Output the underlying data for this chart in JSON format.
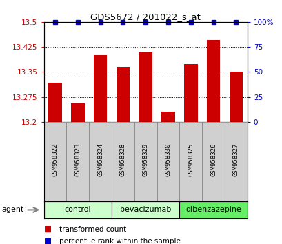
{
  "title": "GDS5672 / 201022_s_at",
  "samples": [
    "GSM958322",
    "GSM958323",
    "GSM958324",
    "GSM958328",
    "GSM958329",
    "GSM958330",
    "GSM958325",
    "GSM958326",
    "GSM958327"
  ],
  "bar_values": [
    13.318,
    13.255,
    13.4,
    13.365,
    13.408,
    13.232,
    13.373,
    13.445,
    13.35
  ],
  "percentile_values": [
    100,
    100,
    100,
    100,
    100,
    100,
    100,
    100,
    100
  ],
  "bar_color": "#cc0000",
  "dot_color": "#0000cc",
  "ylim_left": [
    13.2,
    13.5
  ],
  "ylim_right": [
    0,
    100
  ],
  "yticks_left": [
    13.2,
    13.275,
    13.35,
    13.425,
    13.5
  ],
  "yticks_right": [
    0,
    25,
    50,
    75,
    100
  ],
  "ytick_labels_left": [
    "13.2",
    "13.275",
    "13.35",
    "13.425",
    "13.5"
  ],
  "ytick_labels_right": [
    "0",
    "25",
    "50",
    "75",
    "100%"
  ],
  "groups": [
    {
      "label": "control",
      "indices": [
        0,
        1,
        2
      ],
      "color": "#ccffcc"
    },
    {
      "label": "bevacizumab",
      "indices": [
        3,
        4,
        5
      ],
      "color": "#ccffcc"
    },
    {
      "label": "dibenzazepine",
      "indices": [
        6,
        7,
        8
      ],
      "color": "#66ee66"
    }
  ],
  "group_row_label": "agent",
  "legend_bar_label": "transformed count",
  "legend_dot_label": "percentile rank within the sample",
  "bar_width": 0.6,
  "sample_box_color": "#d0d0d0"
}
